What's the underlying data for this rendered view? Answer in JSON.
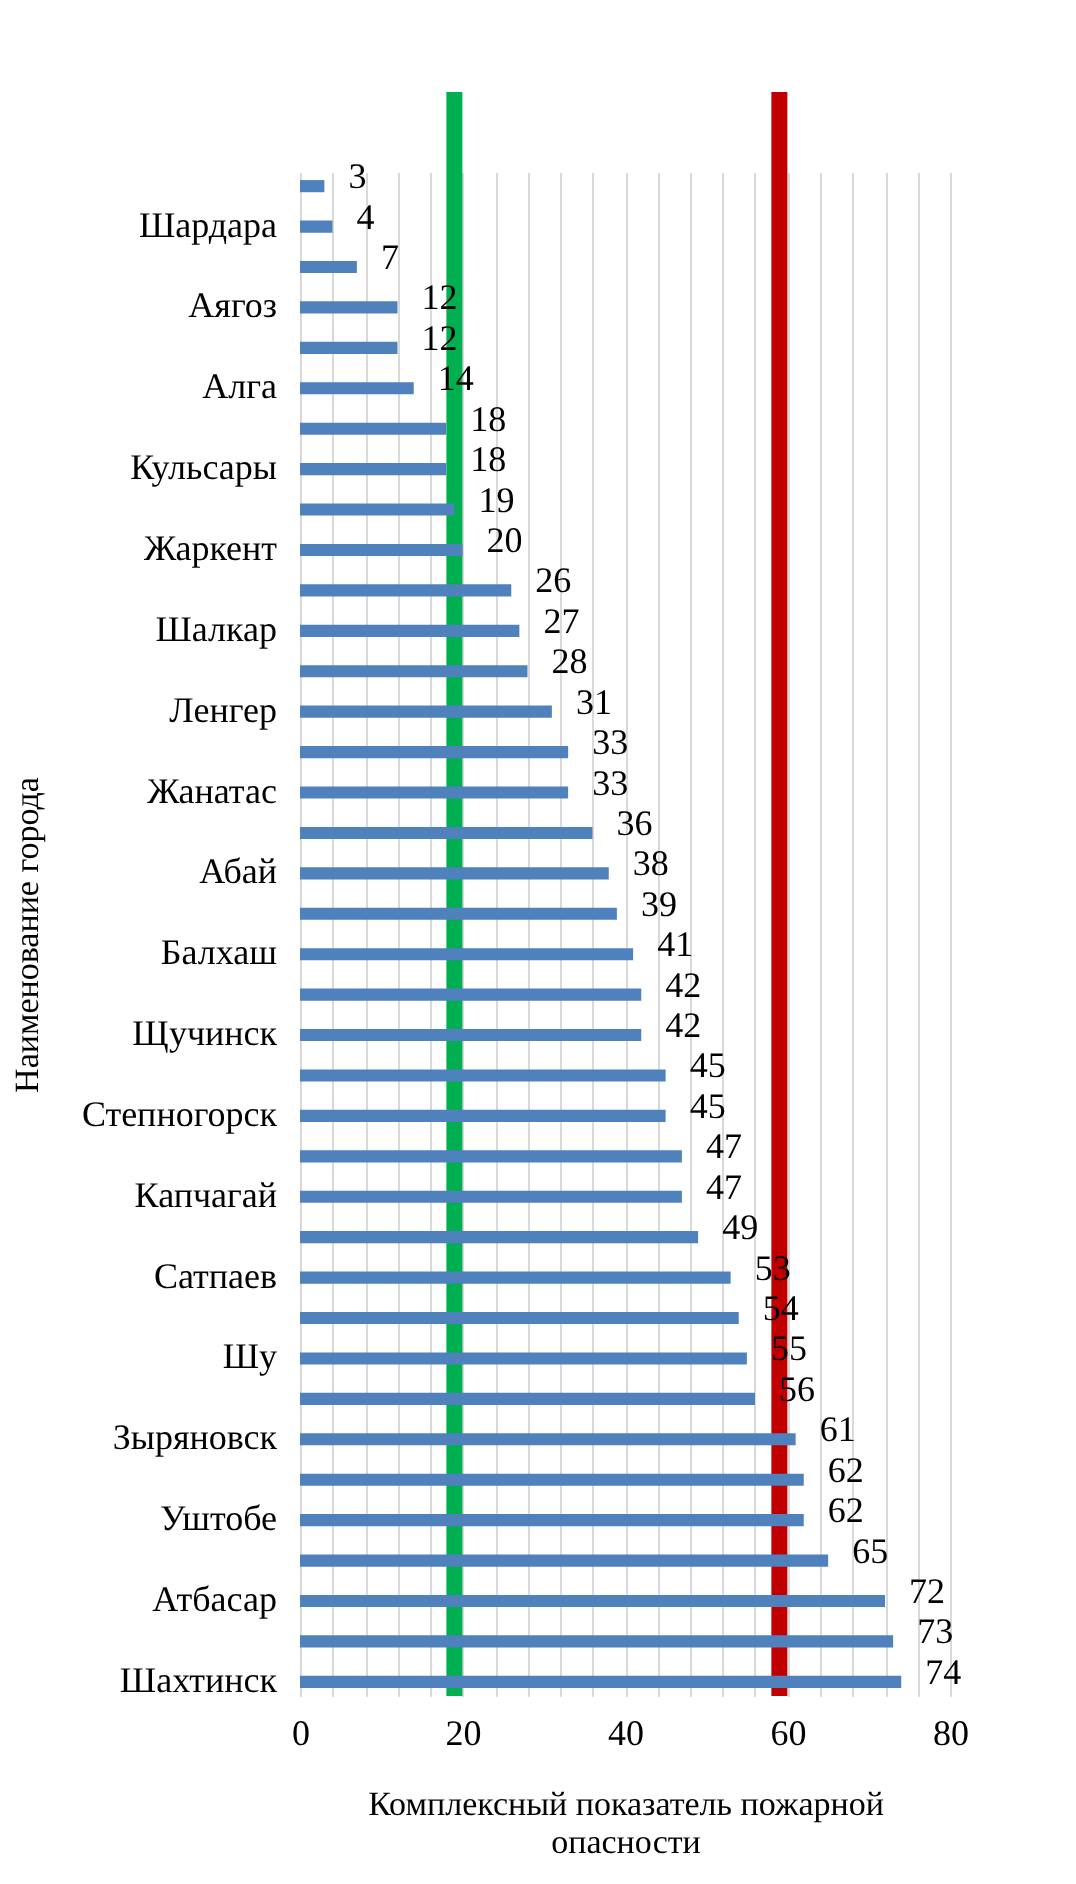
{
  "chart_data": {
    "type": "bar",
    "orientation": "horizontal",
    "xlabel": "Комплексный показатель пожарной опасности",
    "ylabel": "Наименование города",
    "categories": [
      null,
      "Шардара",
      null,
      "Аягоз",
      null,
      "Алга",
      null,
      "Кульсары",
      null,
      "Жаркент",
      null,
      "Шалкар",
      null,
      "Ленгер",
      null,
      "Жанатас",
      null,
      "Абай",
      null,
      "Балхаш",
      null,
      "Щучинск",
      null,
      "Степногорск",
      null,
      "Капчагай",
      null,
      "Сатпаев",
      null,
      "Шу",
      null,
      "Зыряновск",
      null,
      "Уштобе",
      null,
      "Атбасар",
      null,
      "Шахтинск"
    ],
    "values": [
      3,
      4,
      7,
      12,
      12,
      14,
      18,
      18,
      19,
      20,
      26,
      27,
      28,
      31,
      33,
      33,
      36,
      38,
      39,
      41,
      42,
      42,
      45,
      45,
      47,
      47,
      49,
      53,
      54,
      55,
      56,
      61,
      62,
      62,
      65,
      72,
      73,
      74
    ],
    "color": "#4f81bd",
    "data_labels": true,
    "xlim": [
      0,
      80
    ],
    "xticks": [
      0,
      {
        "value": 4,
        "label": null
      },
      {
        "value": 8,
        "label": null
      },
      {
        "value": 12,
        "label": null
      },
      {
        "value": 16,
        "label": null
      },
      20,
      {
        "value": 24,
        "label": null
      },
      {
        "value": 28,
        "label": null
      },
      {
        "value": 32,
        "label": null
      },
      {
        "value": 36,
        "label": null
      },
      40,
      {
        "value": 44,
        "label": null
      },
      {
        "value": 48,
        "label": null
      },
      {
        "value": 52,
        "label": null
      },
      {
        "value": 56,
        "label": null
      },
      60,
      {
        "value": 64,
        "label": null
      },
      {
        "value": 68,
        "label": null
      },
      {
        "value": 72,
        "label": null
      },
      {
        "value": 76,
        "label": null
      },
      80
    ],
    "grid": "x",
    "ref_lines": [
      {
        "axis": "x",
        "value": 19,
        "color": "#00b050"
      },
      {
        "axis": "x",
        "value": 59,
        "color": "#c00000"
      }
    ]
  }
}
